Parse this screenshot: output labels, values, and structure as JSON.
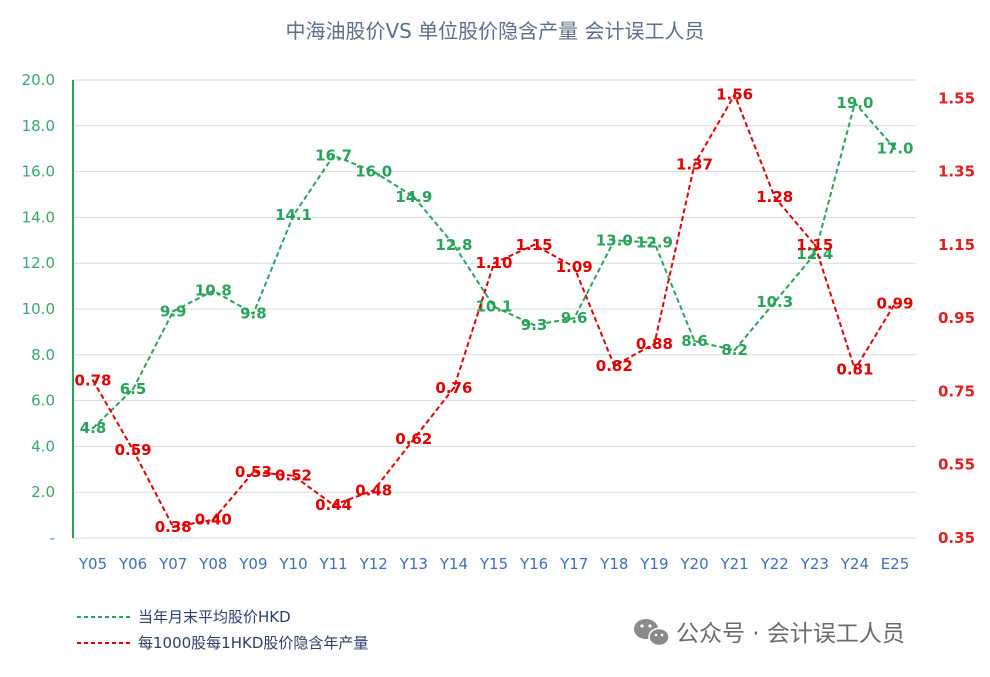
{
  "chart_data": {
    "type": "line",
    "title": "中海油股价VS 单位股价隐含产量 会计误工人员",
    "categories": [
      "Y05",
      "Y06",
      "Y07",
      "Y08",
      "Y09",
      "Y10",
      "Y11",
      "Y12",
      "Y13",
      "Y14",
      "Y15",
      "Y16",
      "Y17",
      "Y18",
      "Y19",
      "Y20",
      "Y21",
      "Y22",
      "Y23",
      "Y24",
      "E25"
    ],
    "left_axis": {
      "ylim": [
        0,
        20
      ],
      "ticks": [
        "-",
        "2.0",
        "4.0",
        "6.0",
        "8.0",
        "10.0",
        "12.0",
        "14.0",
        "16.0",
        "18.0",
        "20.0"
      ]
    },
    "right_axis": {
      "ylim": [
        0.35,
        1.6
      ],
      "ticks": [
        "0.35",
        "0.55",
        "0.75",
        "0.95",
        "1.15",
        "1.35",
        "1.55"
      ]
    },
    "series": [
      {
        "name": "当年月末平均股价HKD",
        "axis": "left",
        "color": "#2aa35a",
        "values": [
          4.8,
          6.5,
          9.9,
          10.8,
          9.8,
          14.1,
          16.7,
          16.0,
          14.9,
          12.8,
          10.1,
          9.3,
          9.6,
          13.0,
          12.9,
          8.6,
          8.2,
          10.3,
          12.4,
          19.0,
          17.0
        ],
        "labels": [
          "4.8",
          "6.5",
          "9.9",
          "10.8",
          "9.8",
          "14.1",
          "16.7",
          "16.0",
          "14.9",
          "12.8",
          "10.1",
          "9.3",
          "9.6",
          "13.0",
          "12.9",
          "8.6",
          "8.2",
          "10.3",
          "12.4",
          "19.0",
          "17.0"
        ]
      },
      {
        "name": "每1000股每1HKD股价隐含年产量",
        "axis": "right",
        "color": "#e00000",
        "values": [
          0.78,
          0.59,
          0.38,
          0.4,
          0.53,
          0.52,
          0.44,
          0.48,
          0.62,
          0.76,
          1.1,
          1.15,
          1.09,
          0.82,
          0.88,
          1.37,
          1.56,
          1.28,
          1.15,
          0.81,
          0.99
        ],
        "labels": [
          "0.78",
          "0.59",
          "0.38",
          "0.40",
          "0.53",
          "0.52",
          "0.44",
          "0.48",
          "0.62",
          "0.76",
          "1.10",
          "1.15",
          "1.09",
          "0.82",
          "0.88",
          "1.37",
          "1.56",
          "1.28",
          "1.15",
          "0.81",
          "0.99"
        ]
      }
    ],
    "grid": true,
    "legend": "bottom-left"
  },
  "watermark": {
    "text": "公众号 · 会计误工人员",
    "icon": "wechat-icon"
  }
}
